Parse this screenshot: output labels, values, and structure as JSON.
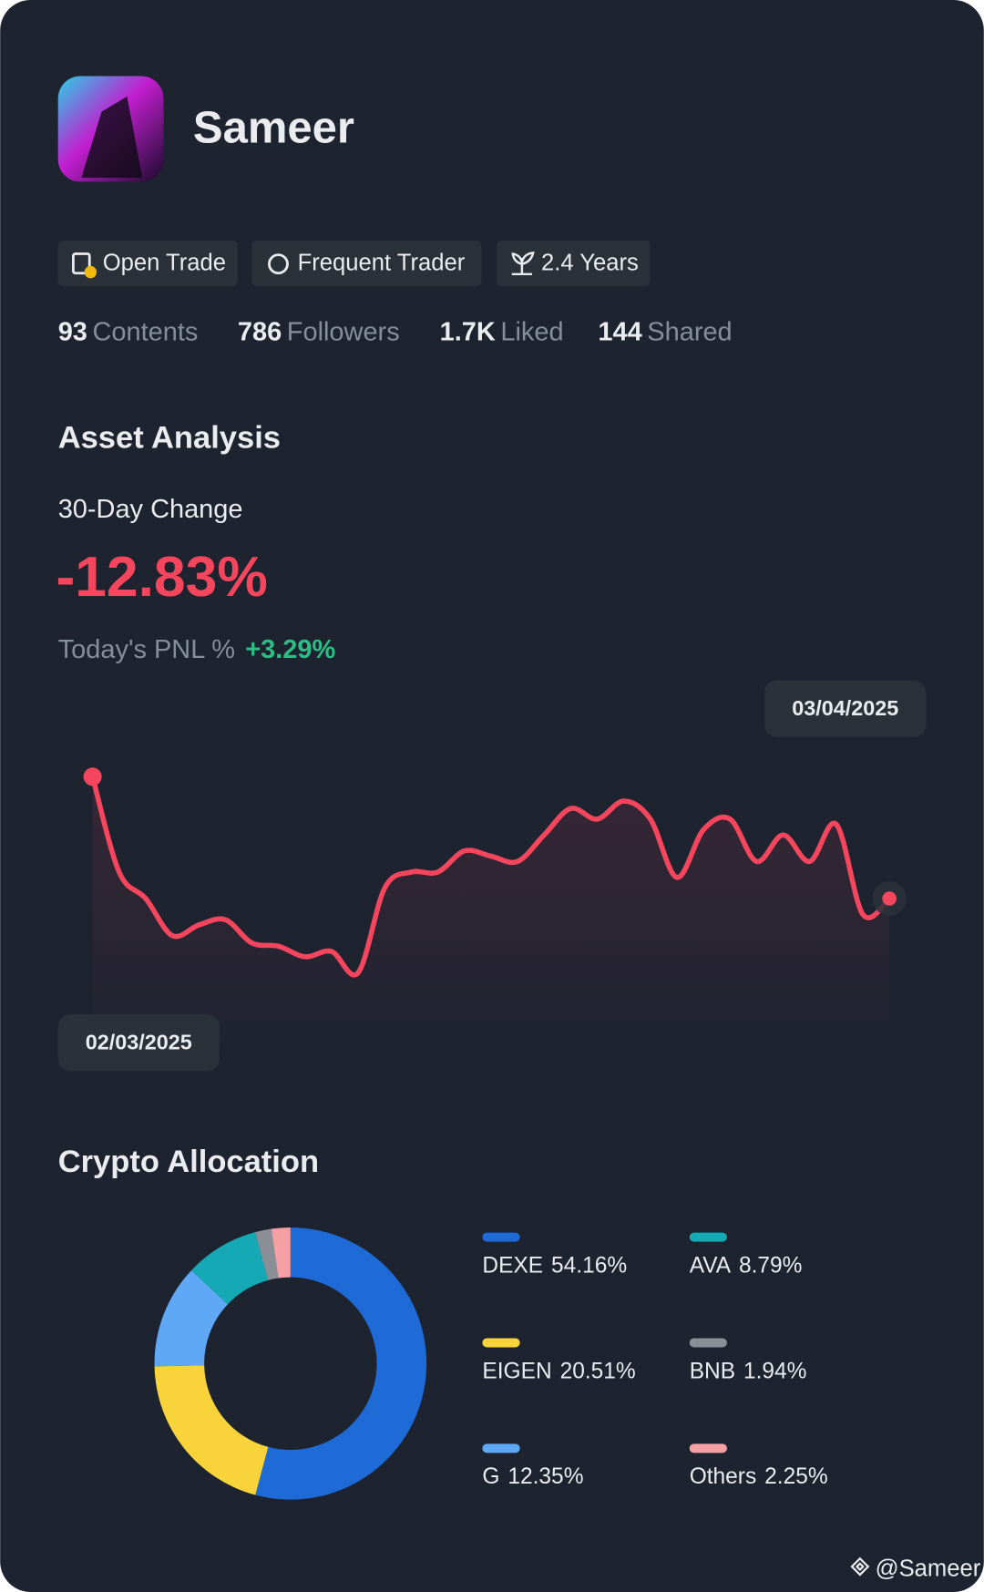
{
  "profile": {
    "name": "Sameer",
    "badges": [
      "Open Trade",
      "Frequent Trader",
      "2.4 Years"
    ],
    "stats": [
      {
        "value": "93",
        "label": "Contents"
      },
      {
        "value": "786",
        "label": "Followers"
      },
      {
        "value": "1.7K",
        "label": "Liked"
      },
      {
        "value": "144",
        "label": "Shared"
      }
    ]
  },
  "asset_analysis": {
    "title": "Asset Analysis",
    "change_label": "30-Day Change",
    "change_value": "-12.83%",
    "pnl_label": "Today's PNL %",
    "pnl_value": "+3.29%"
  },
  "chart_data": [
    {
      "type": "line",
      "color": "#f6465d",
      "categories": [
        "02/03/2025",
        null,
        null,
        null,
        null,
        null,
        null,
        null,
        null,
        null,
        null,
        null,
        null,
        null,
        null,
        null,
        null,
        null,
        null,
        null,
        null,
        null,
        null,
        null,
        null,
        null,
        null,
        null,
        null,
        null,
        "03/04/2025"
      ],
      "values": [
        235,
        145,
        120,
        85,
        95,
        100,
        78,
        75,
        65,
        70,
        50,
        130,
        145,
        145,
        165,
        160,
        155,
        180,
        205,
        195,
        212,
        195,
        140,
        185,
        195,
        155,
        180,
        155,
        190,
        105,
        120
      ]
    },
    {
      "type": "pie",
      "title": "Crypto Allocation",
      "categories": [
        "DEXE",
        "EIGEN",
        "G",
        "AVA",
        "BNB",
        "Others"
      ],
      "values": [
        54.16,
        20.51,
        12.35,
        8.79,
        1.94,
        2.25
      ],
      "value_labels": [
        "54.16%",
        "20.51%",
        "12.35%",
        "8.79%",
        "1.94%",
        "2.25%"
      ],
      "colors": [
        "#1e6ad6",
        "#f8d33a",
        "#5ea8f5",
        "#14a9b4",
        "#8a8e96",
        "#f4a0a5"
      ]
    }
  ],
  "footer": "@Sameer"
}
